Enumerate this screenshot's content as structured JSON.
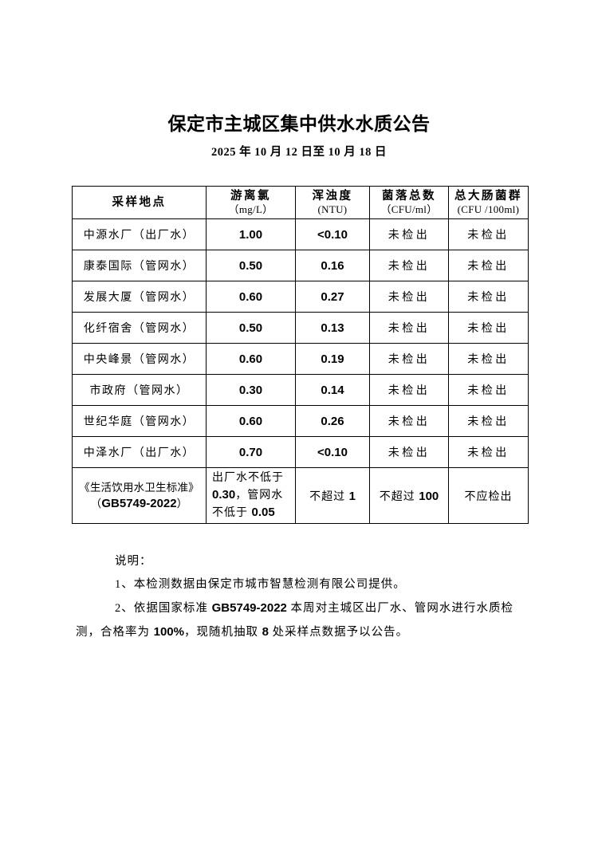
{
  "page": {
    "title": "保定市主城区集中供水水质公告",
    "date_line": "2025 年 10 月 12 日至 10 月 18 日",
    "background_color": "#ffffff",
    "text_color": "#000000",
    "border_color": "#000000"
  },
  "table": {
    "headers": [
      {
        "name": "采样地点",
        "unit": ""
      },
      {
        "name": "游离氯",
        "unit": "（mg/L）"
      },
      {
        "name": "浑浊度",
        "unit": "(NTU)"
      },
      {
        "name": "菌落总数",
        "unit": "（CFU/ml）"
      },
      {
        "name": "总大肠菌群",
        "unit": "(CFU /100ml)"
      }
    ],
    "rows": [
      {
        "location": "中源水厂（出厂水）",
        "chlorine": "1.00",
        "turbidity": "<0.10",
        "colony": "未检出",
        "coliform": "未检出"
      },
      {
        "location": "康泰国际（管网水）",
        "chlorine": "0.50",
        "turbidity": "0.16",
        "colony": "未检出",
        "coliform": "未检出"
      },
      {
        "location": "发展大厦（管网水）",
        "chlorine": "0.60",
        "turbidity": "0.27",
        "colony": "未检出",
        "coliform": "未检出"
      },
      {
        "location": "化纤宿舍（管网水）",
        "chlorine": "0.50",
        "turbidity": "0.13",
        "colony": "未检出",
        "coliform": "未检出"
      },
      {
        "location": "中央峰景（管网水）",
        "chlorine": "0.60",
        "turbidity": "0.19",
        "colony": "未检出",
        "coliform": "未检出"
      },
      {
        "location": "市政府（管网水）",
        "chlorine": "0.30",
        "turbidity": "0.14",
        "colony": "未检出",
        "coliform": "未检出"
      },
      {
        "location": "世纪华庭（管网水）",
        "chlorine": "0.60",
        "turbidity": "0.26",
        "colony": "未检出",
        "coliform": "未检出"
      },
      {
        "location": "中泽水厂（出厂水）",
        "chlorine": "0.70",
        "turbidity": "<0.10",
        "colony": "未检出",
        "coliform": "未检出"
      }
    ],
    "standard_row": {
      "location_line1": "《生活饮用水卫生标准》",
      "location_line2": [
        {
          "t": "（"
        },
        {
          "t": "GB5749-2022",
          "b": true
        },
        {
          "t": "）"
        }
      ],
      "chlorine": [
        {
          "t": "出厂水不低于"
        },
        {
          "t": "0.30",
          "b": true
        },
        {
          "t": "，管网水不低于 "
        },
        {
          "t": "0.05",
          "b": true
        }
      ],
      "turbidity": [
        {
          "t": "不超过 "
        },
        {
          "t": "1",
          "b": true
        }
      ],
      "colony": [
        {
          "t": "不超过 "
        },
        {
          "t": "100",
          "b": true
        }
      ],
      "coliform": "不应检出"
    }
  },
  "notes": {
    "heading": "说明：",
    "items": [
      [
        {
          "t": "1、本检测数据由保定市城市智慧检测有限公司提供。"
        }
      ],
      [
        {
          "t": "2、依据国家标准 "
        },
        {
          "t": "GB5749-2022",
          "b": true
        },
        {
          "t": " 本周对主城区出厂水、管网水进行水质检测，合格率为 "
        },
        {
          "t": "100%",
          "b": true
        },
        {
          "t": "，现随机抽取 "
        },
        {
          "t": "8",
          "b": true
        },
        {
          "t": " 处采样点数据予以公告。"
        }
      ]
    ]
  }
}
